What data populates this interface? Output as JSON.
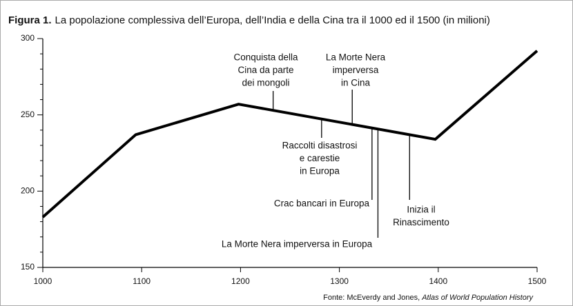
{
  "chart_data": {
    "type": "line",
    "title_label": "Figura 1.",
    "title": "La popolazione complessiva dell’Europa, dell’India e della Cina tra il 1000 ed il 1500 (in milioni)",
    "x": [
      1000,
      1094,
      1198,
      1397,
      1500
    ],
    "series": [
      {
        "name": "Popolazione",
        "color": "#000000",
        "values": [
          183,
          237,
          257,
          234,
          292
        ]
      }
    ],
    "xlim": [
      1000,
      1500
    ],
    "xticks": [
      1000,
      1100,
      1200,
      1300,
      1400,
      1500
    ],
    "ylim": [
      150,
      300
    ],
    "yticks": [
      150,
      200,
      250,
      300
    ],
    "yminorticks": [
      160,
      170,
      180,
      190,
      210,
      220,
      230,
      240,
      260,
      270,
      280,
      290
    ],
    "annotations": [
      {
        "x": 1233,
        "lines": [
          "Conquista della",
          "Cina da parte",
          "dei mongoli"
        ]
      },
      {
        "x": 1313,
        "lines": [
          "La Morte Nera",
          "imperversa",
          "in Cina"
        ]
      },
      {
        "x": 1282,
        "lines": [
          "Raccolti disastrosi",
          "e carestie",
          "in Europa"
        ]
      },
      {
        "x": 1333,
        "lines": [
          "Crac bancari in Europa"
        ]
      },
      {
        "x": 1339,
        "lines": [
          "La Morte Nera imperversa in Europa"
        ]
      },
      {
        "x": 1371,
        "lines": [
          "Inizia il",
          "Rinascimento"
        ]
      }
    ],
    "source": "Fonte: McEverdy and Jones, ",
    "source_title": "Atlas of World Population History"
  }
}
